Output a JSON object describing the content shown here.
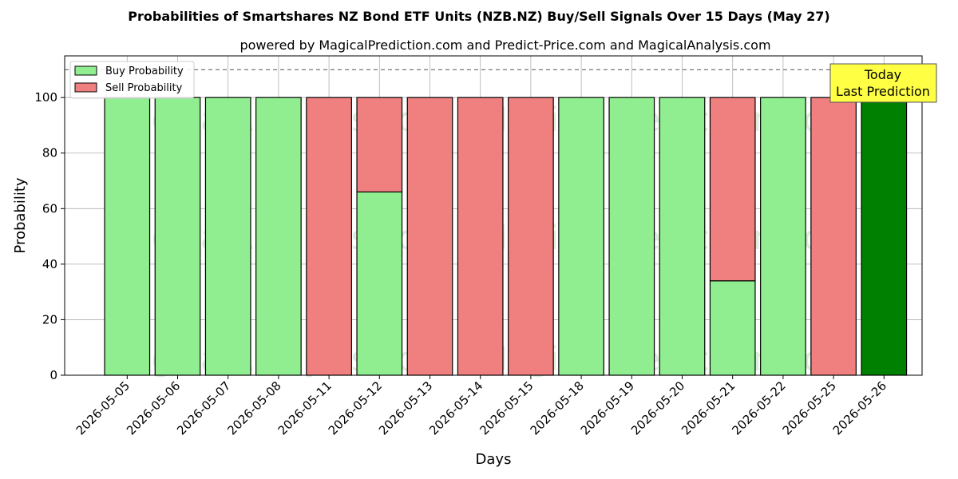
{
  "chart_data": {
    "type": "bar",
    "title": "Probabilities of Smartshares NZ Bond ETF Units (NZB.NZ) Buy/Sell Signals Over 15 Days (May 27)",
    "subtitle": "powered by MagicalPrediction.com and Predict-Price.com and MagicalAnalysis.com",
    "xlabel": "Days",
    "ylabel": "Probability",
    "ylim": [
      0,
      115
    ],
    "yticks": [
      0,
      20,
      40,
      60,
      80,
      100
    ],
    "reference_line": 110,
    "grid": true,
    "legend_placement": "top-left",
    "categories": [
      "2026-05-05",
      "2026-05-06",
      "2026-05-07",
      "2026-05-08",
      "2026-05-11",
      "2026-05-12",
      "2026-05-13",
      "2026-05-14",
      "2026-05-15",
      "2026-05-18",
      "2026-05-19",
      "2026-05-20",
      "2026-05-21",
      "2026-05-22",
      "2026-05-25",
      "2026-05-26"
    ],
    "series": [
      {
        "name": "Buy Probability",
        "color": "#90ee90",
        "values": [
          100,
          100,
          100,
          100,
          0,
          66,
          0,
          0,
          0,
          100,
          100,
          100,
          34,
          100,
          0,
          100
        ]
      },
      {
        "name": "Sell Probability",
        "color": "#f08080",
        "values": [
          0,
          0,
          0,
          0,
          100,
          34,
          100,
          100,
          100,
          0,
          0,
          0,
          66,
          0,
          100,
          0
        ]
      }
    ],
    "highlight": {
      "index": 15,
      "color": "#008000"
    },
    "annotation": {
      "line1": "Today",
      "line2": "Last Prediction",
      "background": "#ffff44"
    },
    "watermarks": [
      "MagicalAnalysis.com",
      "MagicalPrediction.com"
    ]
  }
}
